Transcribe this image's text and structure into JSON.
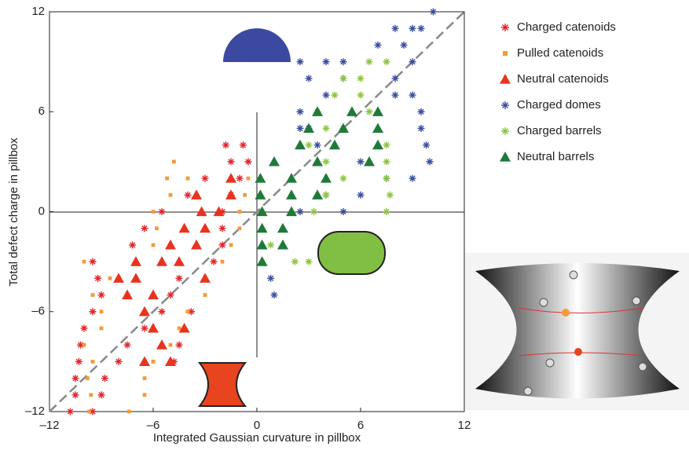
{
  "chart_data": {
    "type": "scatter",
    "xlabel": "Integrated Gaussian curvature in pillbox",
    "ylabel": "Total defect charge in pillbox",
    "xlim": [
      -12,
      12
    ],
    "ylim": [
      -12,
      12
    ],
    "xticks": [
      {
        "value": -12,
        "label": "–12"
      },
      {
        "value": -6,
        "label": "–6"
      },
      0,
      6,
      12
    ],
    "yticks": [
      {
        "value": -12,
        "label": "–12"
      },
      {
        "value": -6,
        "label": "–6"
      },
      0,
      6,
      12
    ],
    "series": [
      {
        "name": "Charged catenoids",
        "color": "#e3262b",
        "marker": "star",
        "x": [
          -10.8,
          -9.5,
          -10.5,
          -9,
          -10.5,
          -8.8,
          -10.3,
          -8,
          -10.2,
          -7.5,
          -10,
          -6.5,
          -9.5,
          -5.5,
          -9,
          -5,
          -9.2,
          -4.5,
          -9.5,
          -2.5,
          -7.2,
          -2,
          -6.5,
          -2,
          -5.5,
          -2,
          -4,
          -1.5,
          -3,
          -1,
          -1.8,
          -0.8,
          -1.5,
          -0.5,
          -4.8,
          -4.5,
          -3.8
        ],
        "values": [
          -12,
          -12,
          -11,
          -11,
          -10,
          -10,
          -9,
          -9,
          -8,
          -8,
          -7,
          -7,
          -6,
          -6,
          -5,
          -5,
          -4,
          -4,
          -3,
          -3,
          -2,
          -2,
          -1,
          -1,
          0,
          0,
          1,
          1,
          2,
          2,
          4,
          4,
          3,
          3,
          -9,
          -8,
          -6
        ]
      },
      {
        "name": "Pulled catenoids",
        "color": "#f39a3a",
        "marker": "square",
        "x": [
          -9.7,
          -7.4,
          -9.6,
          -6.5,
          -9.8,
          -6.5,
          -9.5,
          -6,
          -10,
          -5,
          -9,
          -4.5,
          -9,
          -4,
          -9.5,
          -3,
          -10,
          -2,
          -8.5,
          -6,
          -1.5,
          -5.8,
          -1,
          -6,
          -1,
          -5,
          -0.7,
          -4,
          -0.5,
          -4.8,
          -5.2
        ],
        "values": [
          -12,
          -12,
          -11,
          -11,
          -10,
          -10,
          -9,
          -9,
          -8,
          -8,
          -7,
          -7,
          -6,
          -6,
          -5,
          -5,
          -3,
          -3,
          -4,
          -2,
          -2,
          -1,
          -1,
          0,
          0,
          1,
          1,
          2,
          2,
          3,
          2
        ]
      },
      {
        "name": "Neutral catenoids",
        "color": "#e8331f",
        "marker": "triangle",
        "x": [
          -8,
          -7.5,
          -6.5,
          -6,
          -5.5,
          -6.5,
          -5,
          -7,
          -6,
          -5.5,
          -4.5,
          -3.5,
          -5,
          -3,
          -4.2,
          -3.2,
          -2.2,
          -1.5,
          -3.5,
          -1.5,
          -4.2,
          -3,
          -7
        ],
        "values": [
          -4,
          -5,
          -6,
          -7,
          -8,
          -9,
          -9,
          -4,
          -5,
          -3,
          -3,
          -2,
          -2,
          -1,
          -1,
          0,
          0,
          1,
          1,
          2,
          -7,
          -4,
          -3
        ]
      },
      {
        "name": "Charged domes",
        "color": "#3a4fa0",
        "marker": "star",
        "x": [
          10.2,
          9.5,
          9,
          8,
          7,
          8.5,
          2.5,
          4,
          5,
          9,
          3,
          5,
          8,
          4,
          8,
          9,
          2.5,
          9.5,
          3,
          9.5,
          3.5,
          9.8,
          6,
          10,
          7.5,
          9,
          4,
          6,
          5,
          2.5,
          0.8,
          1,
          2.5
        ],
        "values": [
          12,
          11,
          11,
          11,
          10,
          10,
          9,
          9,
          9,
          9,
          8,
          8,
          8,
          7,
          7,
          7,
          6,
          6,
          5,
          5,
          4,
          4,
          3,
          3,
          2,
          2,
          1,
          1,
          0,
          0,
          -4,
          -5,
          5
        ]
      },
      {
        "name": "Charged barrels",
        "color": "#8cc63f",
        "marker": "star",
        "x": [
          6.5,
          7.5,
          5,
          6,
          4.5,
          6,
          3.5,
          6.5,
          4,
          5,
          3,
          7.5,
          4,
          7.5,
          5,
          7.5,
          4,
          7.7,
          3.3,
          7.5,
          3,
          2.2,
          0.8
        ],
        "values": [
          9,
          9,
          8,
          8,
          7,
          7,
          6,
          6,
          5,
          5,
          4,
          4,
          3,
          3,
          2,
          2,
          1,
          1,
          0,
          0,
          -3,
          -3,
          -2
        ]
      },
      {
        "name": "Neutral barrels",
        "color": "#1f7a3a",
        "marker": "triangle",
        "x": [
          3.5,
          5.5,
          7,
          3,
          5,
          7,
          2.5,
          4.5,
          7,
          1,
          3.5,
          6.5,
          0.2,
          2,
          4,
          0.2,
          2,
          3.5,
          0.3,
          2,
          0.3,
          1.5,
          0.3,
          1.5,
          0.3
        ],
        "values": [
          6,
          6,
          6,
          5,
          5,
          5,
          4,
          4,
          4,
          3,
          3,
          3,
          2,
          2,
          2,
          1,
          1,
          1,
          0,
          0,
          -1,
          -1,
          -2,
          -2,
          -3
        ]
      }
    ]
  }
}
